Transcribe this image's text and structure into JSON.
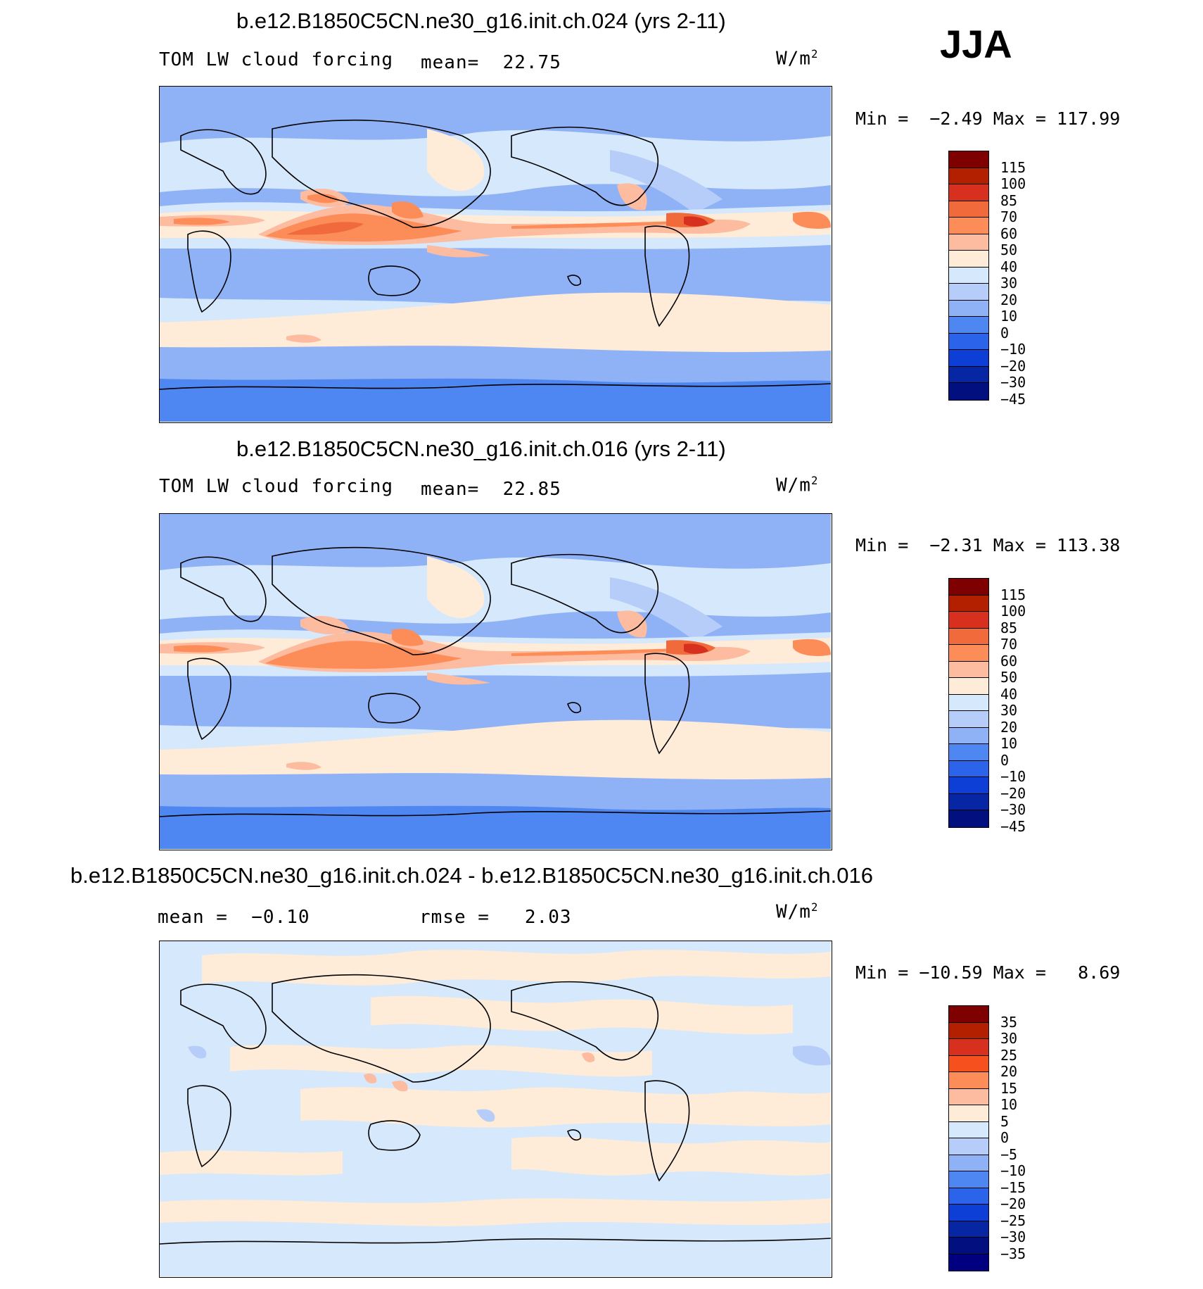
{
  "season": "JJA",
  "units_base": "W/m",
  "units_exp": "2",
  "panels": [
    {
      "title": "b.e12.B1850C5CN.ne30_g16.init.ch.024 (yrs 2-11)",
      "left_label": "TOM LW cloud forcing",
      "stat_label": "mean=",
      "stat_value": "22.75",
      "min_label": "Min =",
      "min_value": "−2.49",
      "max_label": "Max =",
      "max_value": "117.99"
    },
    {
      "title": "b.e12.B1850C5CN.ne30_g16.init.ch.016 (yrs 2-11)",
      "left_label": "TOM LW cloud forcing",
      "stat_label": "mean=",
      "stat_value": "22.85",
      "min_label": "Min =",
      "min_value": "−2.31",
      "max_label": "Max =",
      "max_value": "113.38"
    },
    {
      "title": "b.e12.B1850C5CN.ne30_g16.init.ch.024 - b.e12.B1850C5CN.ne30_g16.init.ch.016",
      "left_label": "mean =",
      "left_value": "−0.10",
      "stat_label": "rmse =",
      "stat_value": "2.03",
      "min_label": "Min =",
      "min_value": "−10.59",
      "max_label": "Max =",
      "max_value": "8.69"
    }
  ],
  "colors": {
    "field_cbar": [
      "#7f0000",
      "#b22000",
      "#d7301f",
      "#f06a3c",
      "#fc8d59",
      "#fdbb9f",
      "#feebd8",
      "#d6e8fb",
      "#b5cdf8",
      "#8fb1f6",
      "#4f87f2",
      "#2b64ea",
      "#0d3fd6",
      "#0626a3",
      "#020f7e"
    ],
    "diff_cbar": [
      "#7f0000",
      "#b22000",
      "#d7301f",
      "#f5501e",
      "#fc8d59",
      "#fdbb9f",
      "#feebd8",
      "#d6e8fb",
      "#b5cdf8",
      "#8fb1f6",
      "#4f87f2",
      "#2b64ea",
      "#0d3fd6",
      "#0626a3",
      "#020f7e",
      "#000080"
    ]
  },
  "chart_data": [
    {
      "type": "heatmap",
      "title": "b.e12.B1850C5CN.ne30_g16.init.ch.024 (yrs 2-11)",
      "variable": "TOM LW cloud forcing",
      "units": "W/m2",
      "mean": 22.75,
      "min": -2.49,
      "max": 117.99,
      "levels": [
        115,
        100,
        85,
        70,
        60,
        50,
        40,
        30,
        20,
        10,
        0,
        -10,
        -20,
        -30,
        -45
      ]
    },
    {
      "type": "heatmap",
      "title": "b.e12.B1850C5CN.ne30_g16.init.ch.016 (yrs 2-11)",
      "variable": "TOM LW cloud forcing",
      "units": "W/m2",
      "mean": 22.85,
      "min": -2.31,
      "max": 113.38,
      "levels": [
        115,
        100,
        85,
        70,
        60,
        50,
        40,
        30,
        20,
        10,
        0,
        -10,
        -20,
        -30,
        -45
      ]
    },
    {
      "type": "heatmap",
      "title": "b.e12.B1850C5CN.ne30_g16.init.ch.024 - b.e12.B1850C5CN.ne30_g16.init.ch.016",
      "units": "W/m2",
      "mean": -0.1,
      "rmse": 2.03,
      "min": -10.59,
      "max": 8.69,
      "levels": [
        35,
        30,
        25,
        20,
        15,
        10,
        5,
        0,
        -5,
        -10,
        -15,
        -20,
        -25,
        -30,
        -35
      ]
    }
  ],
  "level_labels": {
    "field": [
      "115",
      "100",
      "85",
      "70",
      "60",
      "50",
      "40",
      "30",
      "20",
      "10",
      "0",
      "−10",
      "−20",
      "−30",
      "−45"
    ],
    "diff": [
      "35",
      "30",
      "25",
      "20",
      "15",
      "10",
      "5",
      "0",
      "−5",
      "−10",
      "−15",
      "−20",
      "−25",
      "−30",
      "−35"
    ]
  }
}
